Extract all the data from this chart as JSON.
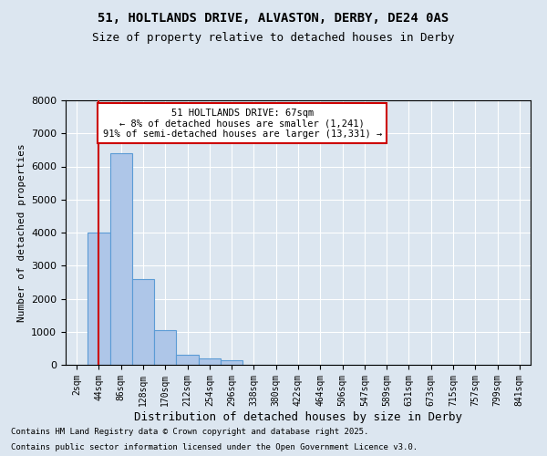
{
  "title_line1": "51, HOLTLANDS DRIVE, ALVASTON, DERBY, DE24 0AS",
  "title_line2": "Size of property relative to detached houses in Derby",
  "xlabel": "Distribution of detached houses by size in Derby",
  "ylabel": "Number of detached properties",
  "bin_labels": [
    "2sqm",
    "44sqm",
    "86sqm",
    "128sqm",
    "170sqm",
    "212sqm",
    "254sqm",
    "296sqm",
    "338sqm",
    "380sqm",
    "422sqm",
    "464sqm",
    "506sqm",
    "547sqm",
    "589sqm",
    "631sqm",
    "673sqm",
    "715sqm",
    "757sqm",
    "799sqm",
    "841sqm"
  ],
  "bar_values": [
    0,
    4000,
    6400,
    2600,
    1050,
    300,
    180,
    150,
    0,
    0,
    0,
    0,
    0,
    0,
    0,
    0,
    0,
    0,
    0,
    0,
    0
  ],
  "bar_color": "#aec6e8",
  "bar_edge_color": "#5b9bd5",
  "vline_x": 1.0,
  "vline_color": "#cc0000",
  "annotation_title": "51 HOLTLANDS DRIVE: 67sqm",
  "annotation_line2": "← 8% of detached houses are smaller (1,241)",
  "annotation_line3": "91% of semi-detached houses are larger (13,331) →",
  "annotation_box_color": "#ffffff",
  "annotation_box_edge": "#cc0000",
  "ylim": [
    0,
    8000
  ],
  "yticks": [
    0,
    1000,
    2000,
    3000,
    4000,
    5000,
    6000,
    7000,
    8000
  ],
  "footer_line1": "Contains HM Land Registry data © Crown copyright and database right 2025.",
  "footer_line2": "Contains public sector information licensed under the Open Government Licence v3.0.",
  "bg_color": "#dce6f0",
  "plot_bg_color": "#dce6f0"
}
